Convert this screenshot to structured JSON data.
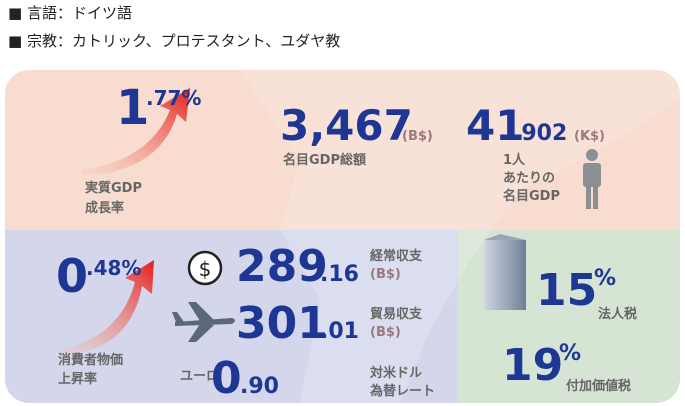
{
  "header": {
    "language": "■ 言語：ドイツ語",
    "religion": "■ 宗教：カトリック、プロテスタント、ユダヤ教"
  },
  "economy": {
    "real_gdp_growth": {
      "integer": "1",
      "decimal": ".77%",
      "label": [
        "実質GDP",
        "成長率"
      ]
    },
    "nominal_gdp": {
      "value": "3,467",
      "unit": "(B$)",
      "label": "名目GDP総額"
    },
    "gdp_per_capita": {
      "integer": "41",
      "decimal": ".902",
      "unit": "(K$)",
      "label": [
        "1人",
        "あたりの",
        "名目GDP"
      ]
    },
    "cpi": {
      "integer": "0",
      "decimal": ".48%",
      "label": [
        "消費者物価",
        "上昇率"
      ]
    },
    "current_account": {
      "icon": "$",
      "integer": "289",
      "decimal": ".16",
      "label": "経常収支",
      "unit": "(B$)"
    },
    "trade_balance": {
      "integer": "301",
      "decimal": ".01",
      "label": "貿易収支",
      "unit": "(B$)"
    },
    "exchange_rate": {
      "currency": "ユーロ",
      "integer": "0",
      "decimal": ".90",
      "label": [
        "対米ドル",
        "為替レート"
      ]
    },
    "corporate_tax": {
      "value": "15",
      "unit": "%",
      "label": "法人税"
    },
    "vat": {
      "value": "19",
      "unit": "%",
      "label": "付加価値税"
    }
  }
}
